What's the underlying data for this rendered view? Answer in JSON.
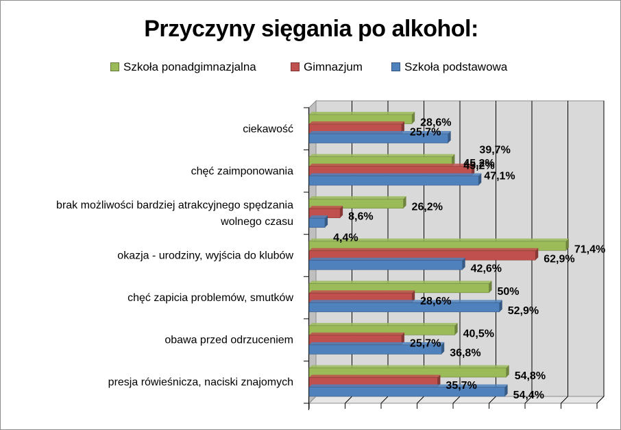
{
  "chart_data": {
    "type": "bar",
    "orientation": "horizontal",
    "title": "Przyczyny sięgania po alkohol:",
    "xlim": [
      0,
      80
    ],
    "grid": true,
    "legend_position": "top",
    "categories": [
      "ciekawość",
      "chęć zaimponowania",
      "brak możliwości bardziej atrakcyjnego spędzania wolnego czasu",
      "okazja - urodziny, wyjścia do klubów",
      "chęć zapicia problemów, smutków",
      "obawa przed odrzuceniem",
      "presja rówieśnicza, naciski znajomych"
    ],
    "category_lines": [
      [
        "ciekawość"
      ],
      [
        "chęć zaimponowania"
      ],
      [
        "brak możliwości bardziej atrakcyjnego spędzania",
        "wolnego czasu"
      ],
      [
        "okazja - urodziny, wyjścia do klubów"
      ],
      [
        "chęć zapicia problemów, smutków"
      ],
      [
        "obawa przed odrzuceniem"
      ],
      [
        "presja rówieśnicza, naciski znajomych"
      ]
    ],
    "series": [
      {
        "name": "Szkoła ponadgimnazjalna",
        "color": "#9bbb59",
        "values": [
          28.6,
          39.7,
          26.2,
          71.4,
          50,
          40.5,
          54.8
        ],
        "labels": [
          "28,6%",
          "39,7%",
          "26,2%",
          "71,4%",
          "50%",
          "40,5%",
          "54,8%"
        ]
      },
      {
        "name": "Gimnazjum",
        "color": "#c0504d",
        "values": [
          25.7,
          45.2,
          8.6,
          62.9,
          28.6,
          25.7,
          35.7
        ],
        "labels": [
          "25,7%",
          "45,2%",
          "8,6%",
          "62,9%",
          "28,6%",
          "25,7%",
          "35,7%"
        ]
      },
      {
        "name": "Szkoła podstawowa",
        "color": "#4f81bd",
        "values": [
          38.6,
          47.1,
          4.4,
          42.6,
          52.9,
          36.8,
          54.4
        ],
        "labels": [
          "",
          "47,1%",
          "4,4%",
          "42,6%",
          "52,9%",
          "36,8%",
          "54,4%"
        ]
      }
    ],
    "legend_order": [
      "Szkoła ponadgimnazjalna",
      "Gimnazjum",
      "Szkoła podstawowa"
    ]
  }
}
